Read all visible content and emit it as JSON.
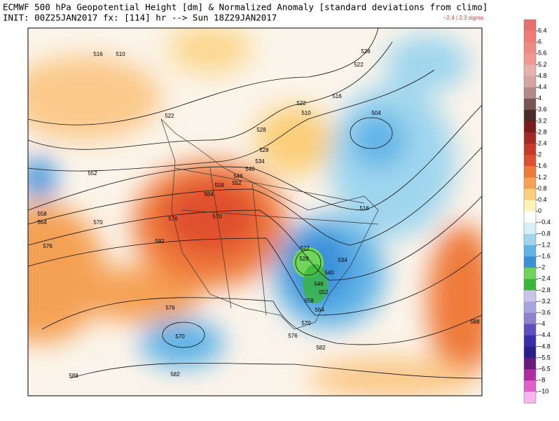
{
  "header": {
    "title": "ECMWF 500 hPa Geopotential Height [dm] & Normalized Anomaly [standard deviations from climo]",
    "subtitle": "INIT: 00Z25JAN2017 fx: [114] hr --> Sun 18Z29JAN2017",
    "sigma": "−2.4 | 2.3 sigma"
  },
  "map": {
    "contour_labels": [
      516,
      510,
      522,
      552,
      558,
      564,
      570,
      576,
      576,
      564,
      558,
      570,
      582,
      546,
      552,
      540,
      534,
      528,
      528,
      522,
      516,
      510,
      504,
      528,
      522,
      516,
      522,
      528,
      534,
      540,
      546,
      552,
      558,
      564,
      570,
      576,
      582,
      576,
      570,
      582,
      588,
      588
    ]
  },
  "colorbar": {
    "ticks": [
      6.4,
      6,
      5.6,
      5.2,
      4.8,
      4.4,
      4,
      3.6,
      3.2,
      2.8,
      2.4,
      2,
      1.6,
      1.2,
      0.8,
      0.4,
      0,
      {
        "value": -0.4,
        "label": "−0.4"
      },
      {
        "value": -0.8,
        "label": "−0.8"
      },
      {
        "value": -1.2,
        "label": "−1.2"
      },
      {
        "value": -1.6,
        "label": "−1.6"
      },
      {
        "value": -2,
        "label": "−2"
      },
      {
        "value": -2.4,
        "label": "−2.4"
      },
      {
        "value": -2.8,
        "label": "−2.8"
      },
      {
        "value": -3.2,
        "label": "−3.2"
      },
      {
        "value": -3.6,
        "label": "−3.6"
      },
      {
        "value": -4,
        "label": "−4"
      },
      {
        "value": -4.4,
        "label": "−4.4"
      },
      {
        "value": -4.8,
        "label": "−4.8"
      },
      {
        "value": -5.5,
        "label": "−5.5"
      },
      {
        "value": -6.5,
        "label": "−6.5"
      },
      {
        "value": -8,
        "label": "−8"
      },
      {
        "value": -10,
        "label": "−10"
      }
    ],
    "colors": [
      "#e8706a",
      "#ec7c75",
      "#ef8a82",
      "#f2978f",
      "#e7b2ab",
      "#d4a6a0",
      "#b08a86",
      "#7a5552",
      "#4a2a28",
      "#7a1e1a",
      "#a32a20",
      "#c73a28",
      "#e0502e",
      "#ee7a3a",
      "#f5a155",
      "#fbcf7a",
      "#fff3b8",
      "#ffffff",
      "#d7f0f5",
      "#9fd6ee",
      "#5fb3e6",
      "#3b8fd9",
      "#6fd45a",
      "#38b83a",
      "#c9c4ea",
      "#a9a3de",
      "#8c82d0",
      "#5d4fc0",
      "#3a2fa8",
      "#2a1e8c",
      "#6a1a7a",
      "#b02aa0",
      "#e060c8",
      "#f7b6ec"
    ]
  }
}
